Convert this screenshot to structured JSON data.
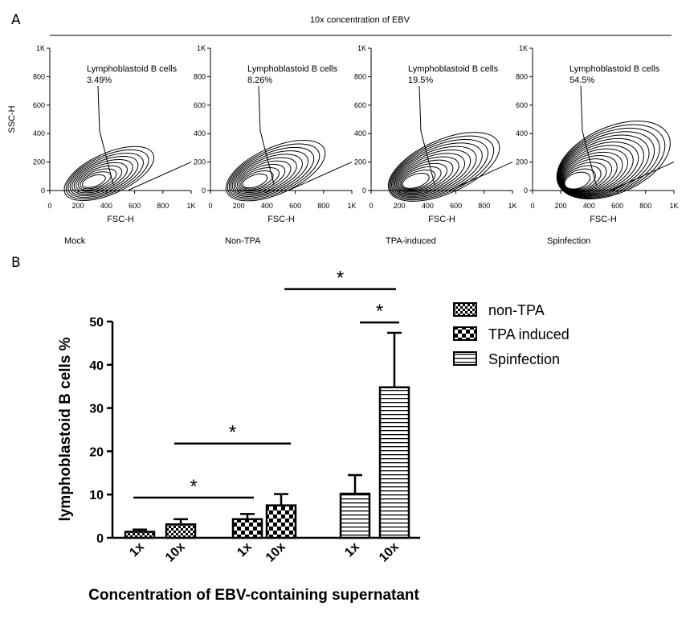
{
  "panel_a": {
    "letter": "A",
    "header": "10x concentration of EBV",
    "x_label": "FSC-H",
    "y_label": "SSC-H",
    "x_ticks": [
      "0",
      "200",
      "400",
      "600",
      "800",
      "1K"
    ],
    "y_ticks": [
      "0",
      "200",
      "400",
      "600",
      "800",
      "1K"
    ],
    "gate_label": "Lymphoblastoid B cells",
    "plots": [
      {
        "name": "Mock",
        "percent": "3.49%",
        "spread": 1.0
      },
      {
        "name": "Non-TPA",
        "percent": "8.26%",
        "spread": 1.35
      },
      {
        "name": "TPA-induced",
        "percent": "19.5%",
        "spread": 1.8
      },
      {
        "name": "Spinfection",
        "percent": "54.5%",
        "spread": 2.6
      }
    ]
  },
  "chart_data": {
    "type": "bar",
    "panel_letter": "B",
    "ylabel": "lymphoblastoid B cells %",
    "xlabel": "Concentration of EBV-containing supernatant",
    "ylim": [
      0,
      50
    ],
    "y_ticks": [
      "0",
      "10",
      "20",
      "30",
      "40",
      "50"
    ],
    "legend_position": "top-right",
    "series": [
      {
        "name": "non-TPA",
        "pattern": "checker-fine",
        "categories": [
          "1x",
          "10x"
        ],
        "values": [
          1.4,
          3.1
        ],
        "errors": [
          0.5,
          1.2
        ]
      },
      {
        "name": "TPA induced",
        "pattern": "checker-coarse",
        "categories": [
          "1x",
          "10x"
        ],
        "values": [
          4.3,
          7.5
        ],
        "errors": [
          1.2,
          2.6
        ]
      },
      {
        "name": "Spinfection",
        "pattern": "horizontal-lines",
        "categories": [
          "1x",
          "10x"
        ],
        "values": [
          10.2,
          34.8
        ],
        "errors": [
          4.3,
          12.6
        ]
      }
    ],
    "significance": [
      {
        "label": "*",
        "between": "non-TPA 1x to TPA induced 1x",
        "y": 9.3
      },
      {
        "label": "*",
        "between": "non-TPA 10x to TPA induced 10x",
        "y": 21.8
      },
      {
        "label": "*",
        "between": "TPA induced 10x to Spinfection 10x",
        "y": 57.5
      },
      {
        "label": "*",
        "between": "Spinfection 1x to Spinfection 10x",
        "y": 49.8
      }
    ]
  }
}
